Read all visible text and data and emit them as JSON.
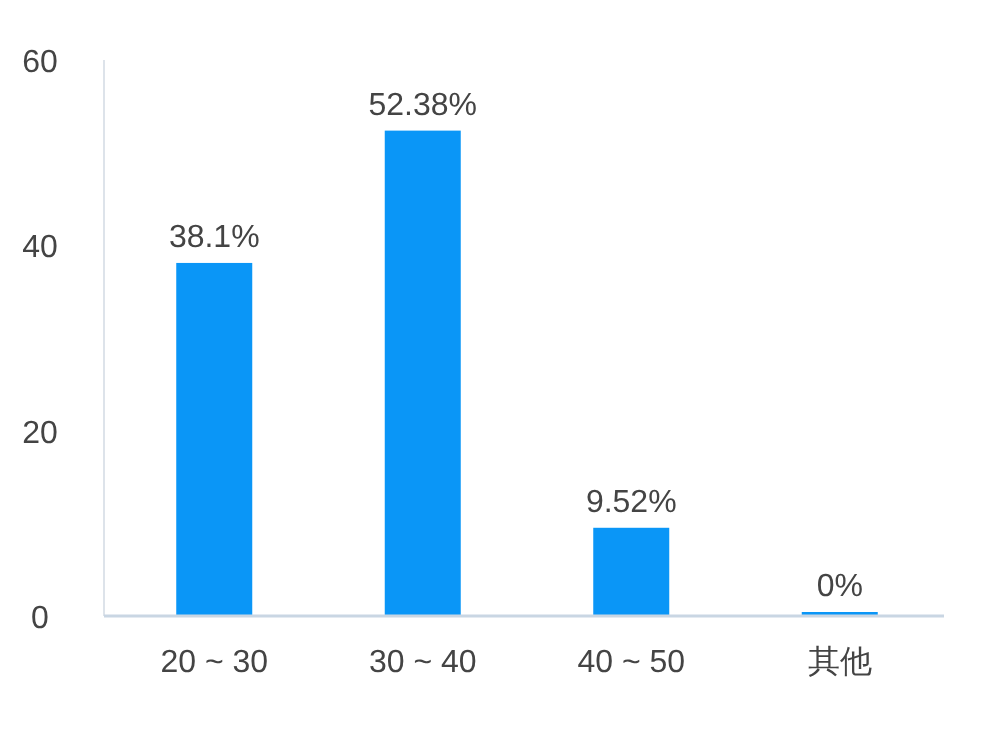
{
  "chart_data": {
    "type": "bar",
    "categories": [
      "20 ~ 30",
      "30 ~ 40",
      "40 ~ 50",
      "其他"
    ],
    "values": [
      38.1,
      52.38,
      9.52,
      0
    ],
    "value_labels": [
      "38.1%",
      "52.38%",
      "9.52%",
      "0%"
    ],
    "color": "#0a96f7",
    "ylim": [
      0,
      60
    ],
    "yticks": [
      0,
      20,
      40,
      60
    ],
    "grid": false
  }
}
